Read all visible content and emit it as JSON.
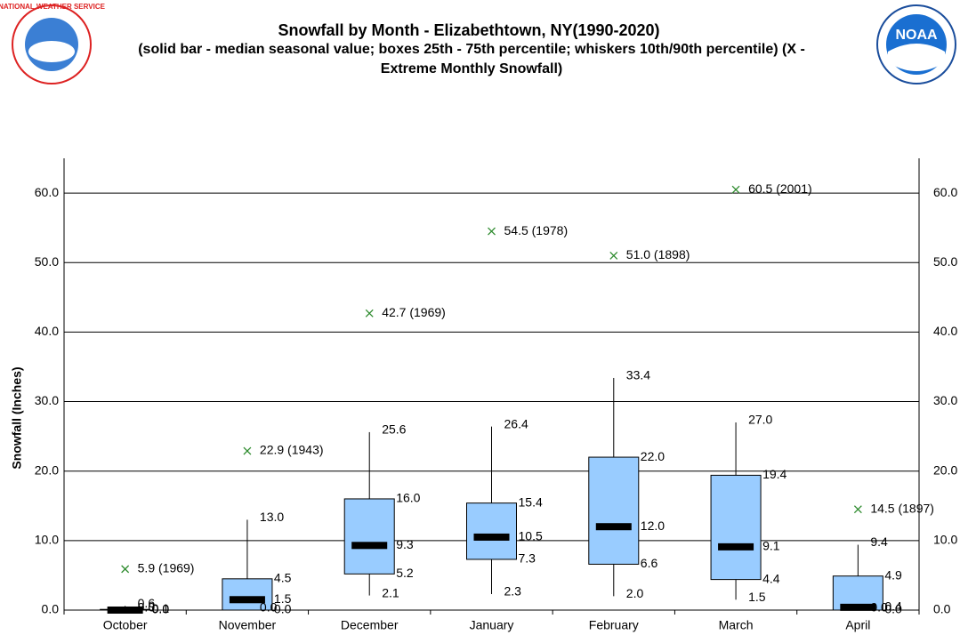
{
  "chart_data": {
    "type": "box",
    "title": "Snowfall by Month - Elizabethtown, NY(1990-2020)",
    "subtitle": "(solid bar - median seasonal value; boxes 25th - 75th percentile; whiskers 10th/90th percentile) (X - Extreme Monthly Snowfall)",
    "y_label": "Snowfall (Inches)",
    "logos": {
      "left": "NATIONAL WEATHER SERVICE",
      "right": "NOAA"
    },
    "categories": [
      "October",
      "November",
      "December",
      "January",
      "February",
      "March",
      "April"
    ],
    "box_color": "#99ccff",
    "median_color": "#000000",
    "extreme_color": "#2e8b2e",
    "stats": {
      "p10": {
        "values": [
          0,
          0,
          2.1,
          2.3,
          2.0,
          1.5,
          0
        ],
        "value_labels": [
          "0.0",
          "0.0",
          "2.1",
          "2.3",
          "2.0",
          "1.5",
          "0.0"
        ]
      },
      "p25": {
        "values": [
          0,
          0,
          5.2,
          7.3,
          6.6,
          4.4,
          0
        ],
        "value_labels": [
          "0.0",
          "0.0",
          "5.2",
          "7.3",
          "6.6",
          "4.4",
          "0.0"
        ]
      },
      "median": {
        "values": [
          0,
          1.5,
          9.3,
          10.5,
          12.0,
          9.1,
          0.4
        ],
        "value_labels": [
          "0.0",
          "1.5",
          "9.3",
          "10.5",
          "12.0",
          "9.1",
          "0.4"
        ]
      },
      "p75": {
        "values": [
          0.1,
          4.5,
          16.0,
          15.4,
          22.0,
          19.4,
          4.9
        ],
        "value_labels": [
          "0.1",
          "4.5",
          "16.0",
          "15.4",
          "22.0",
          "19.4",
          "4.9"
        ]
      },
      "p90": {
        "values": [
          0.6,
          13.0,
          25.6,
          26.4,
          33.4,
          27.0,
          9.4
        ],
        "value_labels": [
          "0.6",
          "13.0",
          "25.6",
          "26.4",
          "33.4",
          "27.0",
          "9.4"
        ]
      },
      "extreme": {
        "values": [
          5.9,
          22.9,
          42.7,
          54.5,
          51.0,
          60.5,
          14.5
        ],
        "value_labels": [
          "5.9 (1969)",
          "22.9 (1943)",
          "42.7 (1969)",
          "54.5 (1978)",
          "51.0 (1898)",
          "60.5 (2001)",
          "14.5 (1897)"
        ]
      }
    },
    "ylim": [
      0,
      65
    ],
    "yticks": [
      {
        "value": 0,
        "label": "0.0"
      },
      {
        "value": 10,
        "label": "10.0"
      },
      {
        "value": 20,
        "label": "20.0"
      },
      {
        "value": 30,
        "label": "30.0"
      },
      {
        "value": 40,
        "label": "40.0"
      },
      {
        "value": 50,
        "label": "50.0"
      },
      {
        "value": 60,
        "label": "60.0"
      }
    ],
    "grid": true
  }
}
